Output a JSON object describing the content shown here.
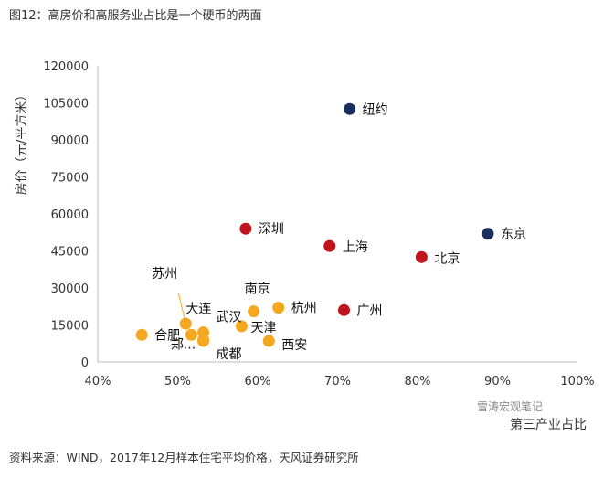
{
  "figure": {
    "title": "图12：高房价和高服务业占比是一个硬币的两面",
    "source": "资料来源：WIND，2017年12月样本住宅平均价格，天风证券研究所",
    "watermark": "雪涛宏观笔记"
  },
  "chart_data": {
    "type": "scatter",
    "xlabel": "第三产业占比",
    "ylabel": "房价（元/平方米）",
    "xlim": [
      0.4,
      1.0
    ],
    "ylim": [
      0,
      120000
    ],
    "x_ticks": [
      "40%",
      "50%",
      "60%",
      "70%",
      "80%",
      "90%",
      "100%"
    ],
    "y_ticks": [
      "0",
      "15000",
      "30000",
      "45000",
      "60000",
      "75000",
      "90000",
      "105000",
      "120000"
    ],
    "grid": false,
    "colors": {
      "navy": "#1b2f5e",
      "red": "#c0141c",
      "orange": "#f5a81e"
    },
    "points": [
      {
        "label": "纽约",
        "x": 0.715,
        "y": 102500,
        "color": "navy"
      },
      {
        "label": "东京",
        "x": 0.888,
        "y": 52000,
        "color": "navy"
      },
      {
        "label": "深圳",
        "x": 0.585,
        "y": 54000,
        "color": "red"
      },
      {
        "label": "上海",
        "x": 0.69,
        "y": 47000,
        "color": "red"
      },
      {
        "label": "北京",
        "x": 0.805,
        "y": 42500,
        "color": "red"
      },
      {
        "label": "广州",
        "x": 0.708,
        "y": 21000,
        "color": "red"
      },
      {
        "label": "南京",
        "x": 0.595,
        "y": 20500,
        "color": "orange"
      },
      {
        "label": "杭州",
        "x": 0.626,
        "y": 22000,
        "color": "orange"
      },
      {
        "label": "苏州",
        "x": 0.51,
        "y": 15500,
        "color": "orange"
      },
      {
        "label": "大连",
        "x": 0.517,
        "y": 11000,
        "color": "orange"
      },
      {
        "label": "武汉",
        "x": 0.532,
        "y": 12000,
        "color": "orange"
      },
      {
        "label": "天津",
        "x": 0.58,
        "y": 14500,
        "color": "orange"
      },
      {
        "label": "合肥",
        "x": 0.455,
        "y": 11000,
        "color": "orange"
      },
      {
        "label": "郑...",
        "x": 0.532,
        "y": 9000,
        "color": "orange"
      },
      {
        "label": "成都",
        "x": 0.532,
        "y": 8500,
        "color": "orange"
      },
      {
        "label": "西安",
        "x": 0.614,
        "y": 8500,
        "color": "orange"
      }
    ]
  }
}
